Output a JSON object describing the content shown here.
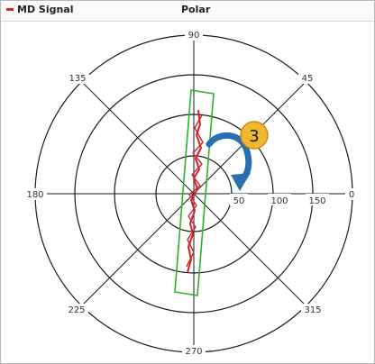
{
  "legend": {
    "label": "MD Signal",
    "color": "#d0242a"
  },
  "title": "Polar",
  "angle_labels": {
    "a0": "0",
    "a45": "45",
    "a90": "90",
    "a135": "135",
    "a180": "180",
    "a225": "225",
    "a270": "270",
    "a315": "315"
  },
  "radial_labels": {
    "r50": "50",
    "r100": "100",
    "r150": "150"
  },
  "annotation": {
    "number": "3",
    "badge_color": "#f0b830",
    "arrow_color": "#2c6fb0"
  },
  "colors": {
    "box": "#2fb12f",
    "signal": "#d0242a"
  }
}
